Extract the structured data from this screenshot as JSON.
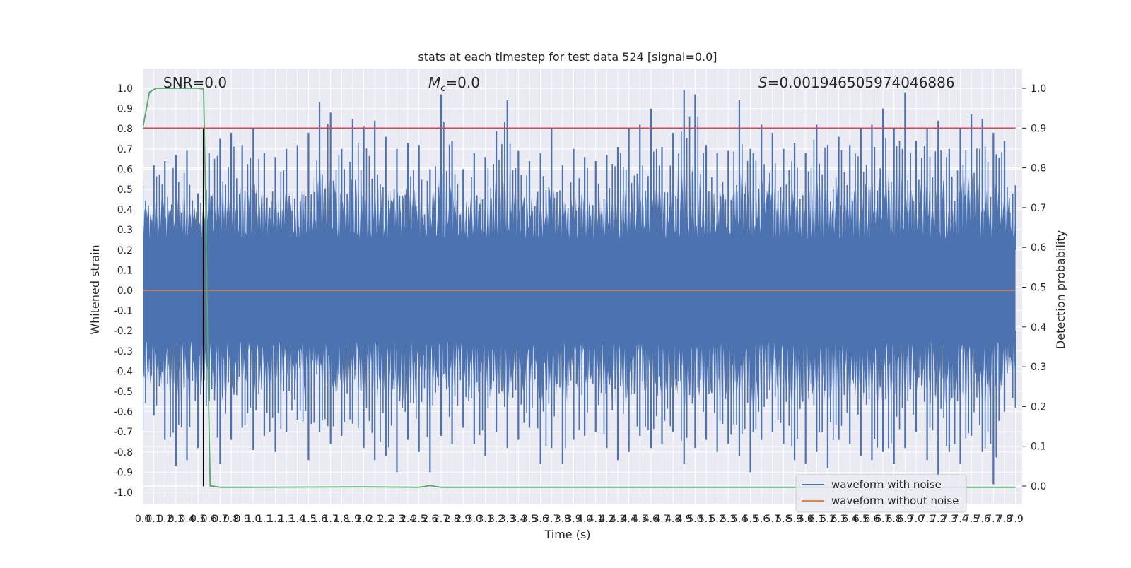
{
  "chart_data": {
    "type": "line",
    "title": "stats at each timestep for test data 524 [signal=0.0]",
    "xlabel": "Time (s)",
    "ylabel": "Whitened strain",
    "y2label": "Detection probability",
    "xlim": [
      0.0,
      7.9
    ],
    "ylim": [
      -1.0,
      1.0
    ],
    "y2lim": [
      0.0,
      1.0
    ],
    "x_ticks": [
      "0.0",
      "0.1",
      "0.2",
      "0.3",
      "0.4",
      "0.5",
      "0.6",
      "0.7",
      "0.8",
      "0.9",
      "1.0",
      "1.1",
      "1.2",
      "1.3",
      "1.4",
      "1.5",
      "1.6",
      "1.7",
      "1.8",
      "1.9",
      "2.0",
      "2.1",
      "2.2",
      "2.3",
      "2.4",
      "2.5",
      "2.6",
      "2.7",
      "2.8",
      "2.9",
      "3.0",
      "3.1",
      "3.2",
      "3.3",
      "3.4",
      "3.5",
      "3.6",
      "3.7",
      "3.8",
      "3.9",
      "4.0",
      "4.1",
      "4.2",
      "4.3",
      "4.4",
      "4.5",
      "4.6",
      "4.7",
      "4.8",
      "4.9",
      "5.0",
      "5.1",
      "5.2",
      "5.3",
      "5.4",
      "5.5",
      "5.6",
      "5.7",
      "5.8",
      "5.9",
      "6.0",
      "6.1",
      "6.2",
      "6.3",
      "6.4",
      "6.5",
      "6.6",
      "6.7",
      "6.8",
      "6.9",
      "7.0",
      "7.1",
      "7.2",
      "7.3",
      "7.4",
      "7.5",
      "7.6",
      "7.7",
      "7.8",
      "7.9"
    ],
    "y_ticks": [
      "1.0",
      "0.9",
      "0.8",
      "0.7",
      "0.6",
      "0.5",
      "0.4",
      "0.3",
      "0.2",
      "0.1",
      "0.0",
      "-0.1",
      "-0.2",
      "-0.3",
      "-0.4",
      "-0.5",
      "-0.6",
      "-0.7",
      "-0.8",
      "-0.9",
      "-1.0"
    ],
    "y2_ticks": [
      "1.0",
      "0.9",
      "0.8",
      "0.7",
      "0.6",
      "0.5",
      "0.4",
      "0.3",
      "0.2",
      "0.1",
      "0.0"
    ],
    "annotations": {
      "snr": "SNR=0.0",
      "mc_symbol": "M",
      "mc_sub": "c",
      "mc_value": "=0.0",
      "s_symbol": "S",
      "s_value": "=0.001946505974046886"
    },
    "legend": {
      "placement": "lower-right",
      "entries": [
        "waveform with noise",
        "waveform without noise"
      ]
    },
    "colors": {
      "noise": "#4c72b0",
      "clean": "#dd8452",
      "probability": "#55a868",
      "threshold": "#c44e52",
      "marker": "#000000",
      "axes_bg": "#eaeaf2",
      "grid": "#ffffff"
    },
    "series": [
      {
        "name": "waveform with noise",
        "kind": "noise-band",
        "upper_envelope": [
          [
            0.0,
            0.52
          ],
          [
            0.1,
            0.62
          ],
          [
            0.2,
            0.64
          ],
          [
            0.3,
            0.67
          ],
          [
            0.4,
            0.69
          ],
          [
            0.5,
            0.48
          ],
          [
            0.6,
            0.68
          ],
          [
            0.7,
            0.75
          ],
          [
            0.8,
            0.78
          ],
          [
            0.9,
            0.72
          ],
          [
            1.0,
            0.8
          ],
          [
            1.1,
            0.68
          ],
          [
            1.2,
            0.66
          ],
          [
            1.3,
            0.7
          ],
          [
            1.4,
            0.72
          ],
          [
            1.5,
            0.78
          ],
          [
            1.6,
            0.93
          ],
          [
            1.7,
            0.88
          ],
          [
            1.8,
            0.7
          ],
          [
            1.9,
            0.85
          ],
          [
            2.0,
            0.81
          ],
          [
            2.1,
            0.84
          ],
          [
            2.2,
            0.76
          ],
          [
            2.3,
            0.7
          ],
          [
            2.4,
            0.73
          ],
          [
            2.5,
            0.72
          ],
          [
            2.6,
            0.6
          ],
          [
            2.7,
            0.97
          ],
          [
            2.8,
            0.74
          ],
          [
            2.9,
            0.6
          ],
          [
            3.0,
            0.68
          ],
          [
            3.1,
            0.66
          ],
          [
            3.2,
            0.79
          ],
          [
            3.3,
            0.94
          ],
          [
            3.4,
            0.69
          ],
          [
            3.5,
            0.64
          ],
          [
            3.6,
            0.68
          ],
          [
            3.7,
            0.8
          ],
          [
            3.8,
            0.62
          ],
          [
            3.9,
            0.7
          ],
          [
            4.0,
            0.66
          ],
          [
            4.1,
            0.64
          ],
          [
            4.2,
            0.67
          ],
          [
            4.3,
            0.71
          ],
          [
            4.4,
            0.8
          ],
          [
            4.5,
            0.82
          ],
          [
            4.6,
            0.9
          ],
          [
            4.7,
            0.71
          ],
          [
            4.8,
            0.78
          ],
          [
            4.9,
            0.99
          ],
          [
            5.0,
            0.97
          ],
          [
            5.1,
            0.72
          ],
          [
            5.2,
            0.68
          ],
          [
            5.3,
            0.69
          ],
          [
            5.4,
            0.94
          ],
          [
            5.5,
            0.7
          ],
          [
            5.6,
            0.82
          ],
          [
            5.7,
            0.78
          ],
          [
            5.8,
            0.7
          ],
          [
            5.9,
            0.73
          ],
          [
            6.0,
            0.68
          ],
          [
            6.1,
            0.82
          ],
          [
            6.2,
            0.72
          ],
          [
            6.3,
            0.76
          ],
          [
            6.4,
            0.72
          ],
          [
            6.5,
            0.8
          ],
          [
            6.6,
            0.82
          ],
          [
            6.7,
            0.9
          ],
          [
            6.8,
            0.8
          ],
          [
            6.9,
            0.98
          ],
          [
            7.0,
            0.74
          ],
          [
            7.1,
            0.8
          ],
          [
            7.2,
            0.84
          ],
          [
            7.3,
            0.7
          ],
          [
            7.4,
            0.8
          ],
          [
            7.5,
            0.87
          ],
          [
            7.6,
            0.85
          ],
          [
            7.7,
            0.78
          ],
          [
            7.8,
            0.74
          ],
          [
            7.9,
            0.52
          ]
        ],
        "lower_envelope": [
          [
            0.0,
            -0.69
          ],
          [
            0.1,
            -0.62
          ],
          [
            0.2,
            -0.74
          ],
          [
            0.3,
            -0.87
          ],
          [
            0.4,
            -0.84
          ],
          [
            0.5,
            -0.78
          ],
          [
            0.6,
            -0.55
          ],
          [
            0.7,
            -0.86
          ],
          [
            0.8,
            -0.74
          ],
          [
            0.9,
            -0.68
          ],
          [
            1.0,
            -0.79
          ],
          [
            1.1,
            -0.72
          ],
          [
            1.2,
            -0.8
          ],
          [
            1.3,
            -0.7
          ],
          [
            1.4,
            -0.64
          ],
          [
            1.5,
            -0.84
          ],
          [
            1.6,
            -0.7
          ],
          [
            1.7,
            -0.76
          ],
          [
            1.8,
            -0.72
          ],
          [
            1.9,
            -0.66
          ],
          [
            2.0,
            -0.78
          ],
          [
            2.1,
            -0.84
          ],
          [
            2.2,
            -0.82
          ],
          [
            2.3,
            -0.9
          ],
          [
            2.4,
            -0.74
          ],
          [
            2.5,
            -0.8
          ],
          [
            2.6,
            -0.9
          ],
          [
            2.7,
            -0.72
          ],
          [
            2.8,
            -0.76
          ],
          [
            2.9,
            -0.68
          ],
          [
            3.0,
            -0.76
          ],
          [
            3.1,
            -0.82
          ],
          [
            3.2,
            -0.7
          ],
          [
            3.3,
            -0.78
          ],
          [
            3.4,
            -0.74
          ],
          [
            3.5,
            -0.68
          ],
          [
            3.6,
            -0.86
          ],
          [
            3.7,
            -0.78
          ],
          [
            3.8,
            -0.86
          ],
          [
            3.9,
            -0.74
          ],
          [
            4.0,
            -0.72
          ],
          [
            4.1,
            -0.7
          ],
          [
            4.2,
            -0.78
          ],
          [
            4.3,
            -0.84
          ],
          [
            4.4,
            -0.8
          ],
          [
            4.5,
            -0.72
          ],
          [
            4.6,
            -0.78
          ],
          [
            4.7,
            -0.76
          ],
          [
            4.8,
            -0.7
          ],
          [
            4.9,
            -0.86
          ],
          [
            5.0,
            -0.78
          ],
          [
            5.1,
            -0.74
          ],
          [
            5.2,
            -0.8
          ],
          [
            5.3,
            -0.76
          ],
          [
            5.4,
            -0.82
          ],
          [
            5.5,
            -0.9
          ],
          [
            5.6,
            -0.74
          ],
          [
            5.7,
            -0.7
          ],
          [
            5.8,
            -0.76
          ],
          [
            5.9,
            -0.84
          ],
          [
            6.0,
            -0.86
          ],
          [
            6.1,
            -0.8
          ],
          [
            6.2,
            -0.88
          ],
          [
            6.3,
            -0.74
          ],
          [
            6.4,
            -0.76
          ],
          [
            6.5,
            -0.82
          ],
          [
            6.6,
            -0.84
          ],
          [
            6.7,
            -0.8
          ],
          [
            6.8,
            -0.86
          ],
          [
            6.9,
            -0.78
          ],
          [
            7.0,
            -0.7
          ],
          [
            7.1,
            -0.84
          ],
          [
            7.2,
            -0.92
          ],
          [
            7.3,
            -0.8
          ],
          [
            7.4,
            -0.86
          ],
          [
            7.5,
            -0.72
          ],
          [
            7.6,
            -0.8
          ],
          [
            7.7,
            -0.96
          ],
          [
            7.8,
            -0.6
          ],
          [
            7.9,
            -0.58
          ]
        ]
      },
      {
        "name": "waveform without noise",
        "axis": "left",
        "x": [
          0.0,
          7.9
        ],
        "y": [
          0.0,
          0.0
        ]
      },
      {
        "name": "",
        "role": "detection probability",
        "axis": "right",
        "x": [
          0.0,
          0.06,
          0.12,
          0.2,
          0.3,
          0.4,
          0.5,
          0.55,
          0.57,
          0.59,
          0.61,
          0.63,
          0.7,
          1.0,
          2.0,
          2.5,
          2.6,
          2.7,
          3.0,
          5.0,
          7.9
        ],
        "y": [
          0.9,
          0.99,
          1.0,
          1.0,
          1.0,
          1.0,
          1.0,
          0.998,
          0.7,
          0.3,
          0.0,
          0.0,
          -0.003,
          -0.003,
          -0.002,
          -0.003,
          0.001,
          -0.003,
          -0.003,
          -0.003,
          -0.003
        ]
      },
      {
        "name": "",
        "role": "threshold",
        "axis": "right",
        "x": [
          0.0,
          7.9
        ],
        "y": [
          0.9,
          0.9
        ]
      },
      {
        "name": "",
        "role": "detection time marker",
        "axis": "left",
        "x": [
          0.55,
          0.55
        ],
        "y": [
          -0.97,
          0.8
        ]
      }
    ]
  }
}
